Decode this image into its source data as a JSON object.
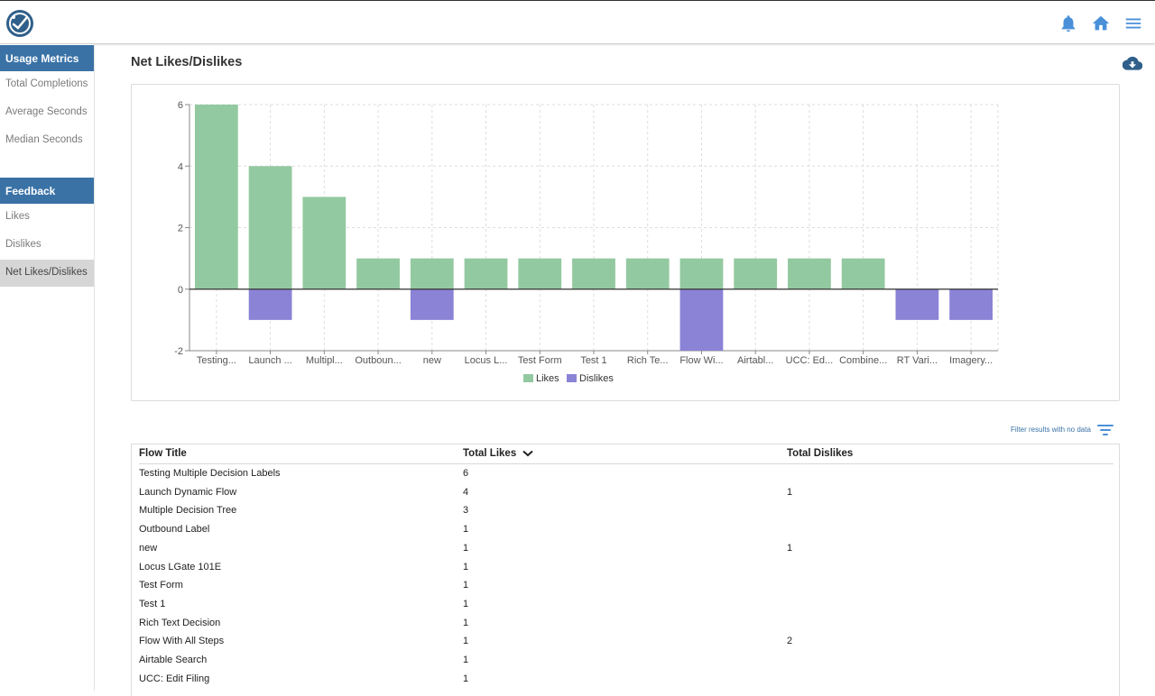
{
  "header": {
    "logo_icon": "compass-check-logo",
    "icons": [
      "bell-icon",
      "home-icon",
      "menu-icon"
    ],
    "accent_color": "#4a90d9"
  },
  "sidebar": {
    "sections": [
      {
        "title": "Usage Metrics",
        "items": [
          {
            "label": "Total Completions",
            "active": false
          },
          {
            "label": "Average Seconds",
            "active": false
          },
          {
            "label": "Median Seconds",
            "active": false
          }
        ]
      },
      {
        "title": "Feedback",
        "items": [
          {
            "label": "Likes",
            "active": false
          },
          {
            "label": "Dislikes",
            "active": false
          },
          {
            "label": "Net Likes/Dislikes",
            "active": true
          }
        ]
      }
    ]
  },
  "main": {
    "title": "Net Likes/Dislikes",
    "download_icon": "cloud-download-icon",
    "filter_label": "Filter results with no data",
    "filter_icon": "filter-icon"
  },
  "chart_data": {
    "type": "bar",
    "categories": [
      "Testing...",
      "Launch ...",
      "Multipl...",
      "Outboun...",
      "new",
      "Locus L...",
      "Test Form",
      "Test 1",
      "Rich Te...",
      "Flow Wi...",
      "Airtabl...",
      "UCC: Ed...",
      "Combine...",
      "RT Vari...",
      "Imagery..."
    ],
    "series": [
      {
        "name": "Likes",
        "color": "#93c9a0",
        "values": [
          6,
          4,
          3,
          1,
          1,
          1,
          1,
          1,
          1,
          1,
          1,
          1,
          1,
          0,
          0
        ]
      },
      {
        "name": "Dislikes",
        "color": "#8b83d6",
        "values": [
          0,
          -1,
          0,
          0,
          -1,
          0,
          0,
          0,
          0,
          -2,
          0,
          0,
          0,
          -1,
          -1
        ]
      }
    ],
    "yticks": [
      -2,
      0,
      2,
      4,
      6
    ],
    "ylim": [
      -2,
      6
    ],
    "grid": true,
    "legend": "bottom"
  },
  "table": {
    "columns": [
      {
        "label": "Flow Title",
        "sorted": false
      },
      {
        "label": "Total Likes",
        "sorted": true,
        "sort_icon": "chevron-down-icon"
      },
      {
        "label": "Total Dislikes",
        "sorted": false
      }
    ],
    "rows": [
      {
        "title": "Testing Multiple Decision Labels",
        "likes": "6",
        "dislikes": ""
      },
      {
        "title": "Launch Dynamic Flow",
        "likes": "4",
        "dislikes": "1"
      },
      {
        "title": "Multiple Decision Tree",
        "likes": "3",
        "dislikes": ""
      },
      {
        "title": "Outbound Label",
        "likes": "1",
        "dislikes": ""
      },
      {
        "title": "new",
        "likes": "1",
        "dislikes": "1"
      },
      {
        "title": "Locus LGate 101E",
        "likes": "1",
        "dislikes": ""
      },
      {
        "title": "Test Form",
        "likes": "1",
        "dislikes": ""
      },
      {
        "title": "Test 1",
        "likes": "1",
        "dislikes": ""
      },
      {
        "title": "Rich Text Decision",
        "likes": "1",
        "dislikes": ""
      },
      {
        "title": "Flow With All Steps",
        "likes": "1",
        "dislikes": "2"
      },
      {
        "title": "Airtable Search",
        "likes": "1",
        "dislikes": ""
      },
      {
        "title": "UCC: Edit Filing",
        "likes": "1",
        "dislikes": ""
      }
    ]
  }
}
